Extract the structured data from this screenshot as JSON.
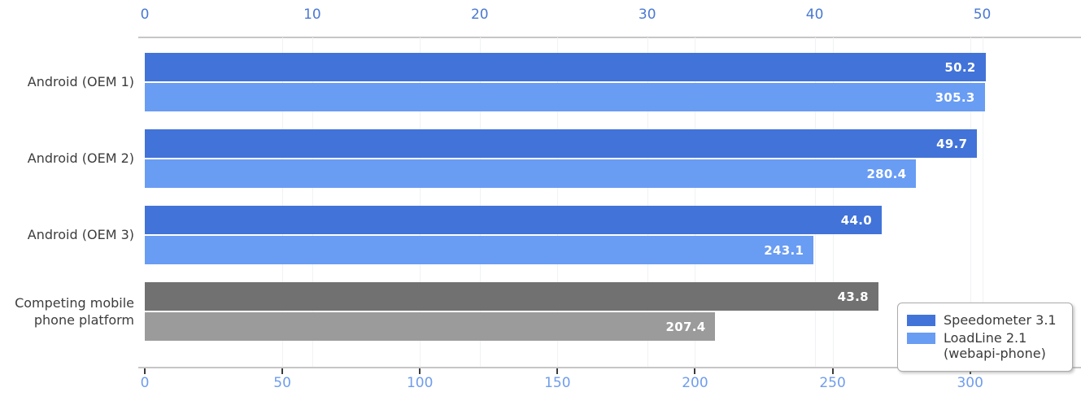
{
  "chart_data": {
    "type": "bar",
    "orientation": "horizontal",
    "title": "",
    "categories": [
      "Android (OEM 1)",
      "Android (OEM 2)",
      "Android (OEM 3)",
      "Competing mobile\nphone platform"
    ],
    "series": [
      {
        "name": "Speedometer 3.1",
        "axis": "top",
        "values": [
          50.2,
          49.7,
          44.0,
          43.8
        ],
        "labels": [
          "50.2",
          "49.7",
          "44.0",
          "43.8"
        ],
        "color": "#4273d8",
        "competitor_color": "#717171"
      },
      {
        "name": "LoadLine 2.1 (webapi-phone)",
        "axis": "bottom",
        "values": [
          305.3,
          280.4,
          243.1,
          207.4
        ],
        "labels": [
          "305.3",
          "280.4",
          "243.1",
          "207.4"
        ],
        "color": "#699cf3",
        "competitor_color": "#9b9b9b"
      }
    ],
    "top_axis": {
      "ticks": [
        0,
        10,
        20,
        30,
        40,
        50
      ],
      "tick_labels": [
        "0",
        "10",
        "20",
        "30",
        "40",
        "50"
      ],
      "range": [
        0,
        55.9
      ],
      "label_color": "#4a79d1"
    },
    "bottom_axis": {
      "ticks": [
        0,
        50,
        100,
        150,
        200,
        250,
        300
      ],
      "tick_labels": [
        "0",
        "50",
        "100",
        "150",
        "200",
        "250",
        "300"
      ],
      "range": [
        0,
        340.3
      ],
      "label_color": "#6f9ded"
    },
    "grid": true,
    "gridline_color": "#f0f2f4",
    "axis_line_color": "#c6c6c6",
    "value_label_color": "#ffffff",
    "category_label_color": "#3d3d3d",
    "legend": {
      "position": "lower-right",
      "entries": [
        {
          "label": "Speedometer 3.1",
          "swatch_color": "#4273d8"
        },
        {
          "label": "LoadLine 2.1\n(webapi-phone)",
          "swatch_color": "#699cf3"
        }
      ]
    }
  }
}
